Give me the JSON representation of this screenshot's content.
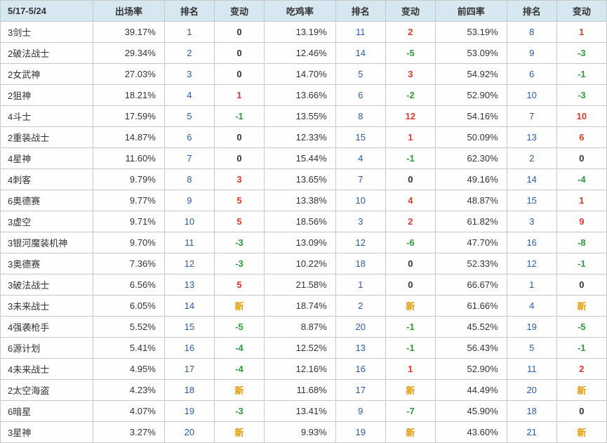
{
  "colors": {
    "header_bg": "#d6e7f2",
    "border": "#c8c8c8",
    "text": "#333333",
    "rank": "#2b5ca8",
    "pos": "#d93a2a",
    "neg": "#2e9a3c",
    "new": "#e69a00",
    "zero": "#333333"
  },
  "headers": {
    "name": "5/17-5/24",
    "rate1": "出场率",
    "rank1": "排名",
    "chg1": "变动",
    "rate2": "吃鸡率",
    "rank2": "排名",
    "chg2": "变动",
    "rate3": "前四率",
    "rank3": "排名",
    "chg3": "变动"
  },
  "new_label": "新",
  "rows": [
    {
      "name": "3剑士",
      "r1": "39.17%",
      "k1": 1,
      "c1": 0,
      "r2": "13.19%",
      "k2": 11,
      "c2": 2,
      "r3": "53.19%",
      "k3": 8,
      "c3": 1
    },
    {
      "name": "2破法战士",
      "r1": "29.34%",
      "k1": 2,
      "c1": 0,
      "r2": "12.46%",
      "k2": 14,
      "c2": -5,
      "r3": "53.09%",
      "k3": 9,
      "c3": -3
    },
    {
      "name": "2女武神",
      "r1": "27.03%",
      "k1": 3,
      "c1": 0,
      "r2": "14.70%",
      "k2": 5,
      "c2": 3,
      "r3": "54.92%",
      "k3": 6,
      "c3": -1
    },
    {
      "name": "2狙神",
      "r1": "18.21%",
      "k1": 4,
      "c1": 1,
      "r2": "13.66%",
      "k2": 6,
      "c2": -2,
      "r3": "52.90%",
      "k3": 10,
      "c3": -3
    },
    {
      "name": "4斗士",
      "r1": "17.59%",
      "k1": 5,
      "c1": -1,
      "r2": "13.55%",
      "k2": 8,
      "c2": 12,
      "r3": "54.16%",
      "k3": 7,
      "c3": 10
    },
    {
      "name": "2重装战士",
      "r1": "14.87%",
      "k1": 6,
      "c1": 0,
      "r2": "12.33%",
      "k2": 15,
      "c2": 1,
      "r3": "50.09%",
      "k3": 13,
      "c3": 6
    },
    {
      "name": "4星神",
      "r1": "11.60%",
      "k1": 7,
      "c1": 0,
      "r2": "15.44%",
      "k2": 4,
      "c2": -1,
      "r3": "62.30%",
      "k3": 2,
      "c3": 0
    },
    {
      "name": "4刺客",
      "r1": "9.79%",
      "k1": 8,
      "c1": 3,
      "r2": "13.65%",
      "k2": 7,
      "c2": 0,
      "r3": "49.16%",
      "k3": 14,
      "c3": -4
    },
    {
      "name": "6奥德赛",
      "r1": "9.77%",
      "k1": 9,
      "c1": 5,
      "r2": "13.38%",
      "k2": 10,
      "c2": 4,
      "r3": "48.87%",
      "k3": 15,
      "c3": 1
    },
    {
      "name": "3虚空",
      "r1": "9.71%",
      "k1": 10,
      "c1": 5,
      "r2": "18.56%",
      "k2": 3,
      "c2": 2,
      "r3": "61.82%",
      "k3": 3,
      "c3": 9
    },
    {
      "name": "3银河魔装机神",
      "r1": "9.70%",
      "k1": 11,
      "c1": -3,
      "r2": "13.09%",
      "k2": 12,
      "c2": -6,
      "r3": "47.70%",
      "k3": 16,
      "c3": -8
    },
    {
      "name": "3奥德赛",
      "r1": "7.36%",
      "k1": 12,
      "c1": -3,
      "r2": "10.22%",
      "k2": 18,
      "c2": 0,
      "r3": "52.33%",
      "k3": 12,
      "c3": -1
    },
    {
      "name": "3破法战士",
      "r1": "6.56%",
      "k1": 13,
      "c1": 5,
      "r2": "21.58%",
      "k2": 1,
      "c2": 0,
      "r3": "66.67%",
      "k3": 1,
      "c3": 0
    },
    {
      "name": "3未来战士",
      "r1": "6.05%",
      "k1": 14,
      "c1": "new",
      "r2": "18.74%",
      "k2": 2,
      "c2": "new",
      "r3": "61.66%",
      "k3": 4,
      "c3": "new"
    },
    {
      "name": "4强袭枪手",
      "r1": "5.52%",
      "k1": 15,
      "c1": -5,
      "r2": "8.87%",
      "k2": 20,
      "c2": -1,
      "r3": "45.52%",
      "k3": 19,
      "c3": -5
    },
    {
      "name": "6源计划",
      "r1": "5.41%",
      "k1": 16,
      "c1": -4,
      "r2": "12.52%",
      "k2": 13,
      "c2": -1,
      "r3": "56.43%",
      "k3": 5,
      "c3": -1
    },
    {
      "name": "4未来战士",
      "r1": "4.95%",
      "k1": 17,
      "c1": -4,
      "r2": "12.16%",
      "k2": 16,
      "c2": 1,
      "r3": "52.90%",
      "k3": 11,
      "c3": 2
    },
    {
      "name": "2太空海盗",
      "r1": "4.23%",
      "k1": 18,
      "c1": "new",
      "r2": "11.68%",
      "k2": 17,
      "c2": "new",
      "r3": "44.49%",
      "k3": 20,
      "c3": "new"
    },
    {
      "name": "6暗星",
      "r1": "4.07%",
      "k1": 19,
      "c1": -3,
      "r2": "13.41%",
      "k2": 9,
      "c2": -7,
      "r3": "45.90%",
      "k3": 18,
      "c3": 0
    },
    {
      "name": "3星神",
      "r1": "3.27%",
      "k1": 20,
      "c1": "new",
      "r2": "9.93%",
      "k2": 19,
      "c2": "new",
      "r3": "43.60%",
      "k3": 21,
      "c3": "new"
    }
  ]
}
